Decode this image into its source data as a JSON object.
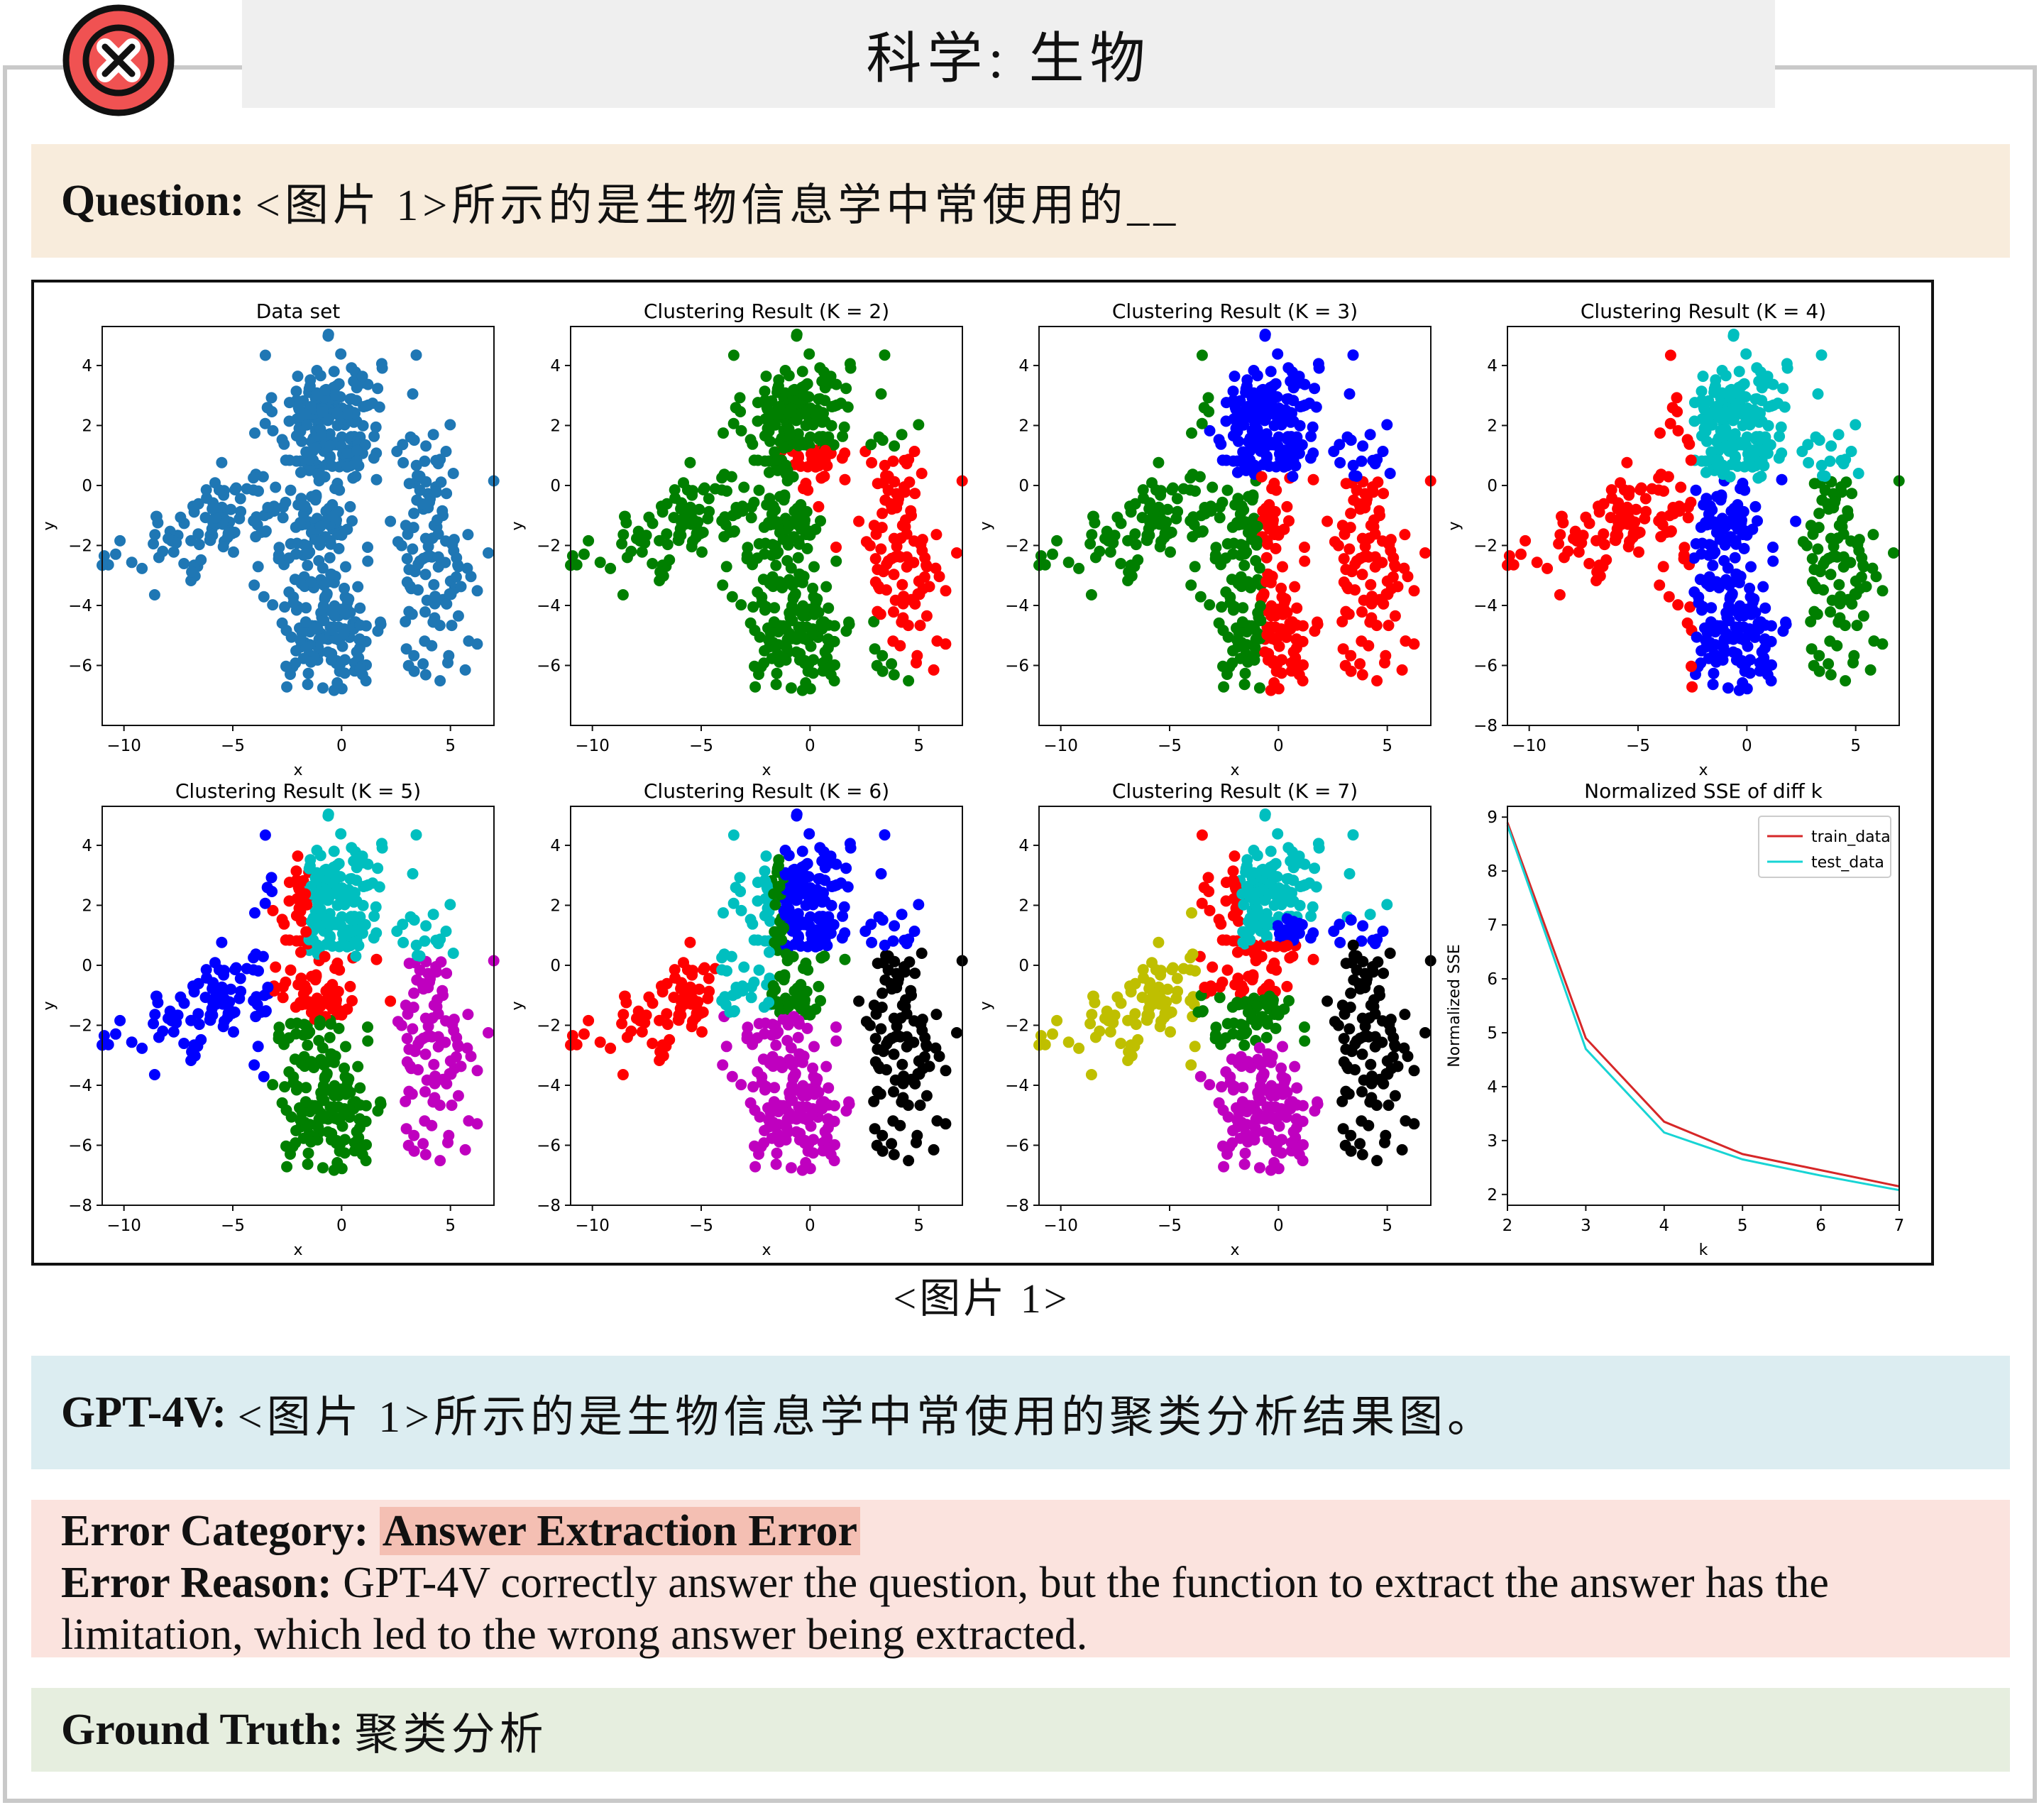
{
  "header": {
    "title": "科学: 生物",
    "status_icon": "close-circle-icon",
    "status_color": "#f05252"
  },
  "question": {
    "label": "Question:",
    "text": "<图片 1>所示的是生物信息学中常使用的__"
  },
  "figure": {
    "caption": "<图片 1>"
  },
  "answer": {
    "label": "GPT-4V:",
    "text": "<图片 1>所示的是生物信息学中常使用的聚类分析结果图。"
  },
  "error": {
    "category_label": "Error Category:",
    "category_value": "Answer Extraction Error",
    "reason_label": "Error Reason:",
    "reason_text": "GPT-4V correctly answer the question, but the function to extract the answer has the limitation, which led to the wrong answer being extracted."
  },
  "ground_truth": {
    "label": "Ground Truth:",
    "text": "聚类分析"
  },
  "chart_data": [
    {
      "type": "scatter",
      "title": "Data set",
      "xlabel": "x",
      "ylabel": "y",
      "xlim": [
        -11,
        7
      ],
      "ylim": [
        -8,
        5.3
      ],
      "xticks": [
        -10,
        -5,
        0,
        5
      ],
      "yticks": [
        4,
        2,
        0,
        -2,
        -4,
        -6
      ],
      "k": 1,
      "colors": [
        "#1f77b4"
      ]
    },
    {
      "type": "scatter",
      "title": "Clustering Result (K = 2)",
      "xlabel": "x",
      "ylabel": "y",
      "xlim": [
        -11,
        7
      ],
      "ylim": [
        -8,
        5.3
      ],
      "xticks": [
        -10,
        -5,
        0,
        5
      ],
      "yticks": [
        4,
        2,
        0,
        -2,
        -4,
        -6
      ],
      "k": 2,
      "colors": [
        "#007f00",
        "#ff0000"
      ]
    },
    {
      "type": "scatter",
      "title": "Clustering Result (K = 3)",
      "xlabel": "x",
      "ylabel": "y",
      "xlim": [
        -11,
        7
      ],
      "ylim": [
        -8,
        5.3
      ],
      "xticks": [
        -10,
        -5,
        0,
        5
      ],
      "yticks": [
        4,
        2,
        0,
        -2,
        -4,
        -6
      ],
      "k": 3,
      "colors": [
        "#0000ff",
        "#007f00",
        "#ff0000"
      ]
    },
    {
      "type": "scatter",
      "title": "Clustering Result (K = 4)",
      "xlabel": "x",
      "ylabel": "y",
      "xlim": [
        -11,
        7
      ],
      "ylim": [
        -8,
        5.3
      ],
      "xticks": [
        -10,
        -5,
        0,
        5
      ],
      "yticks": [
        4,
        2,
        0,
        -2,
        -4,
        -6,
        -8
      ],
      "k": 4,
      "colors": [
        "#00bfbf",
        "#ff0000",
        "#0000ff",
        "#007f00"
      ]
    },
    {
      "type": "scatter",
      "title": "Clustering Result (K = 5)",
      "xlabel": "x",
      "ylabel": "y",
      "xlim": [
        -11,
        7
      ],
      "ylim": [
        -8,
        5.3
      ],
      "xticks": [
        -10,
        -5,
        0,
        5
      ],
      "yticks": [
        4,
        2,
        0,
        -2,
        -4,
        -6,
        -8
      ],
      "k": 5,
      "colors": [
        "#00bfbf",
        "#ff0000",
        "#0000ff",
        "#007f00",
        "#bf00bf"
      ]
    },
    {
      "type": "scatter",
      "title": "Clustering Result (K = 6)",
      "xlabel": "x",
      "ylabel": "y",
      "xlim": [
        -11,
        7
      ],
      "ylim": [
        -8,
        5.3
      ],
      "xticks": [
        -10,
        -5,
        0,
        5
      ],
      "yticks": [
        4,
        2,
        0,
        -2,
        -4,
        -6,
        -8
      ],
      "k": 6,
      "colors": [
        "#0000ff",
        "#00bfbf",
        "#ff0000",
        "#007f00",
        "#bf00bf",
        "#000000"
      ]
    },
    {
      "type": "scatter",
      "title": "Clustering Result (K = 7)",
      "xlabel": "x",
      "ylabel": "y",
      "xlim": [
        -11,
        7
      ],
      "ylim": [
        -8,
        5.3
      ],
      "xticks": [
        -10,
        -5,
        0,
        5
      ],
      "yticks": [
        4,
        2,
        0,
        -2,
        -4,
        -6,
        -8
      ],
      "k": 7,
      "colors": [
        "#00bfbf",
        "#ff0000",
        "#0000ff",
        "#bfbf00",
        "#007f00",
        "#bf00bf",
        "#000000"
      ]
    },
    {
      "type": "line",
      "title": "Normalized SSE of diff k",
      "xlabel": "k",
      "ylabel": "Normalized SSE",
      "xlim": [
        2,
        7
      ],
      "ylim": [
        1.8,
        9.2
      ],
      "xticks": [
        2,
        3,
        4,
        5,
        6,
        7
      ],
      "yticks": [
        9,
        8,
        7,
        6,
        5,
        4,
        3,
        2
      ],
      "legend": "top-right",
      "x": [
        2,
        3,
        4,
        5,
        6,
        7
      ],
      "series": [
        {
          "name": "train_data",
          "color": "#d62728",
          "values": [
            8.9,
            4.9,
            3.35,
            2.75,
            2.45,
            2.15
          ]
        },
        {
          "name": "test_data",
          "color": "#17d4d4",
          "values": [
            8.85,
            4.7,
            3.15,
            2.65,
            2.35,
            2.08
          ]
        }
      ]
    }
  ]
}
